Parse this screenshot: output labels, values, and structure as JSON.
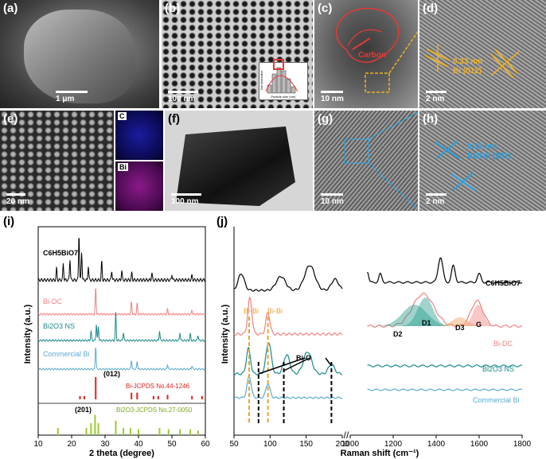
{
  "panels": {
    "a": {
      "label": "(a)",
      "scale": "1 μm"
    },
    "b": {
      "label": "(b)",
      "scale": "100 nm",
      "inset_xlabel": "Particle size (nm)",
      "inset_ylabel": "Size distribution"
    },
    "c": {
      "label": "(c)",
      "scale": "10 nm",
      "annotation": "Carbon"
    },
    "d": {
      "label": "(d)",
      "scale": "2 nm",
      "spacing": "0.33 nm",
      "plane": "Bi (012)"
    },
    "e": {
      "label": "(e)",
      "scale": "20 nm",
      "map_c": "C",
      "map_bi": "Bi"
    },
    "f": {
      "label": "(f)",
      "scale": "100 nm"
    },
    "g": {
      "label": "(g)",
      "scale": "10 nm"
    },
    "h": {
      "label": "(h)",
      "scale": "2 nm",
      "spacing": "0.32 nm",
      "plane": "Bi2O3 (201)"
    }
  },
  "colors": {
    "precursor": "#000000",
    "bi_dc": "#f08080",
    "bi2o3": "#1a8a8a",
    "commercial_bi": "#5aaad0",
    "bi_ref": "#e02020",
    "bi2o3_ref": "#9acd32",
    "carbon_outline": "#e53935",
    "d_annot": "#f0b020",
    "h_annot": "#29a0e0",
    "fit_d2": "#2a9d8f",
    "fit_d3": "#f4a259",
    "fit_g": "#f28482"
  },
  "chart_data": [
    {
      "id": "i",
      "panel_label": "(i)",
      "type": "line",
      "xlabel": "2 theta (degree)",
      "ylabel": "Intensity (a.u.)",
      "xlim": [
        10,
        60
      ],
      "xticks": [
        10,
        20,
        30,
        40,
        50,
        60
      ],
      "series": [
        {
          "name": "C6H5BiO7",
          "key": "precursor",
          "peaks": [
            [
              15.5,
              0.25
            ],
            [
              17.5,
              0.35
            ],
            [
              19.5,
              0.45
            ],
            [
              22.2,
              1.0
            ],
            [
              23,
              0.6
            ],
            [
              25,
              0.3
            ],
            [
              29,
              0.4
            ],
            [
              32,
              0.2
            ],
            [
              35,
              0.2
            ],
            [
              38,
              0.15
            ],
            [
              44,
              0.15
            ],
            [
              50,
              0.12
            ],
            [
              56,
              0.1
            ]
          ]
        },
        {
          "name": "Bi-DC",
          "key": "bi_dc",
          "peaks": [
            [
              27.2,
              1.0
            ],
            [
              37.9,
              0.45
            ],
            [
              39.6,
              0.4
            ],
            [
              48.7,
              0.2
            ],
            [
              56,
              0.15
            ],
            [
              62,
              0.1
            ]
          ]
        },
        {
          "name": "Bi2O3 NS",
          "key": "bi2o3",
          "peaks": [
            [
              25.8,
              0.35
            ],
            [
              27.4,
              0.6
            ],
            [
              28,
              0.5
            ],
            [
              33.2,
              1.0
            ],
            [
              35.5,
              0.3
            ],
            [
              46.3,
              0.35
            ],
            [
              52.4,
              0.3
            ],
            [
              55.5,
              0.25
            ],
            [
              57.8,
              0.2
            ]
          ]
        },
        {
          "name": "Commercial Bi",
          "key": "commercial_bi",
          "peaks": [
            [
              27.2,
              1.0
            ],
            [
              37.9,
              0.4
            ],
            [
              39.6,
              0.35
            ],
            [
              48.7,
              0.2
            ],
            [
              56,
              0.15
            ]
          ]
        }
      ],
      "references": [
        {
          "name": "Bi-JCPDS No.44-1246",
          "key": "bi_ref",
          "sticks": [
            [
              22.5,
              0.15
            ],
            [
              23.8,
              0.15
            ],
            [
              27.2,
              1.0
            ],
            [
              37.9,
              0.3
            ],
            [
              39.6,
              0.3
            ],
            [
              44.5,
              0.15
            ],
            [
              45.9,
              0.15
            ],
            [
              48.7,
              0.2
            ],
            [
              56,
              0.15
            ],
            [
              59,
              0.15
            ]
          ],
          "annotation": "(012)"
        },
        {
          "name": "Bi2O3-JCPDS No.27-0050",
          "key": "bi2o3_ref",
          "sticks": [
            [
              15.9,
              0.3
            ],
            [
              24.4,
              0.3
            ],
            [
              25.8,
              0.5
            ],
            [
              27,
              0.85
            ],
            [
              28,
              0.5
            ],
            [
              33.2,
              0.6
            ],
            [
              35.5,
              0.3
            ],
            [
              37.6,
              0.3
            ],
            [
              40,
              0.25
            ],
            [
              46.3,
              0.3
            ],
            [
              49,
              0.25
            ],
            [
              52.4,
              0.25
            ],
            [
              55.5,
              0.25
            ],
            [
              57.8,
              0.2
            ]
          ],
          "annotation": "(201)"
        }
      ]
    },
    {
      "id": "j",
      "panel_label": "(j)",
      "type": "line",
      "xlabel": "Raman shift (cm⁻¹)",
      "ylabel": "Intensity (a.u.)",
      "xlim_left": [
        50,
        200
      ],
      "xticks_left": [
        50,
        100,
        150,
        200
      ],
      "xlim_right": [
        1000,
        1800
      ],
      "xticks_right": [
        1000,
        1200,
        1400,
        1600,
        1800
      ],
      "series": [
        {
          "name": "C6H5BiO7",
          "key": "precursor"
        },
        {
          "name": "Bi-DC",
          "key": "bi_dc"
        },
        {
          "name": "Bi2O3 NS",
          "key": "bi2o3"
        },
        {
          "name": "Commercial Bi",
          "key": "commercial_bi"
        }
      ],
      "bands": [
        {
          "name": "Bi-Bi",
          "x": 71
        },
        {
          "name": "Bi-Bi",
          "x": 97
        },
        {
          "name": "Bi-O",
          "x": 119
        },
        {
          "name": "Bi-O",
          "x": 185
        },
        {
          "name": "Bi-O",
          "x": 84
        }
      ],
      "fit_labels": [
        "D2",
        "D1",
        "D3",
        "G"
      ]
    }
  ],
  "labels_i": {
    "ylabel": "Intensity (a.u.)",
    "xlabel": "2 theta (degree)",
    "precursor": "C6H5BiO7",
    "bi_dc": "Bi-DC",
    "bi2o3": "Bi2O3 NS",
    "commercial": "Commercial Bi",
    "ref_bi": "Bi-JCPDS No.44-1246",
    "ref_bi2o3": "Bi2O3-JCPDS No.27-0050",
    "peak012": "(012)",
    "peak201": "(201)"
  },
  "labels_j": {
    "ylabel": "Intensity (a.u.)",
    "xlabel": "Raman shift (cm⁻¹)",
    "bibi1": "Bi-Bi",
    "bibi2": "Bi-Bi",
    "bio": "Bi-O",
    "precursor": "C6H5BiO7",
    "bi_dc": "Bi-DC",
    "bi2o3": "Bi2O3 NS",
    "commercial": "Commercial Bi",
    "d2": "D2",
    "d1": "D1",
    "d3": "D3",
    "g": "G"
  }
}
